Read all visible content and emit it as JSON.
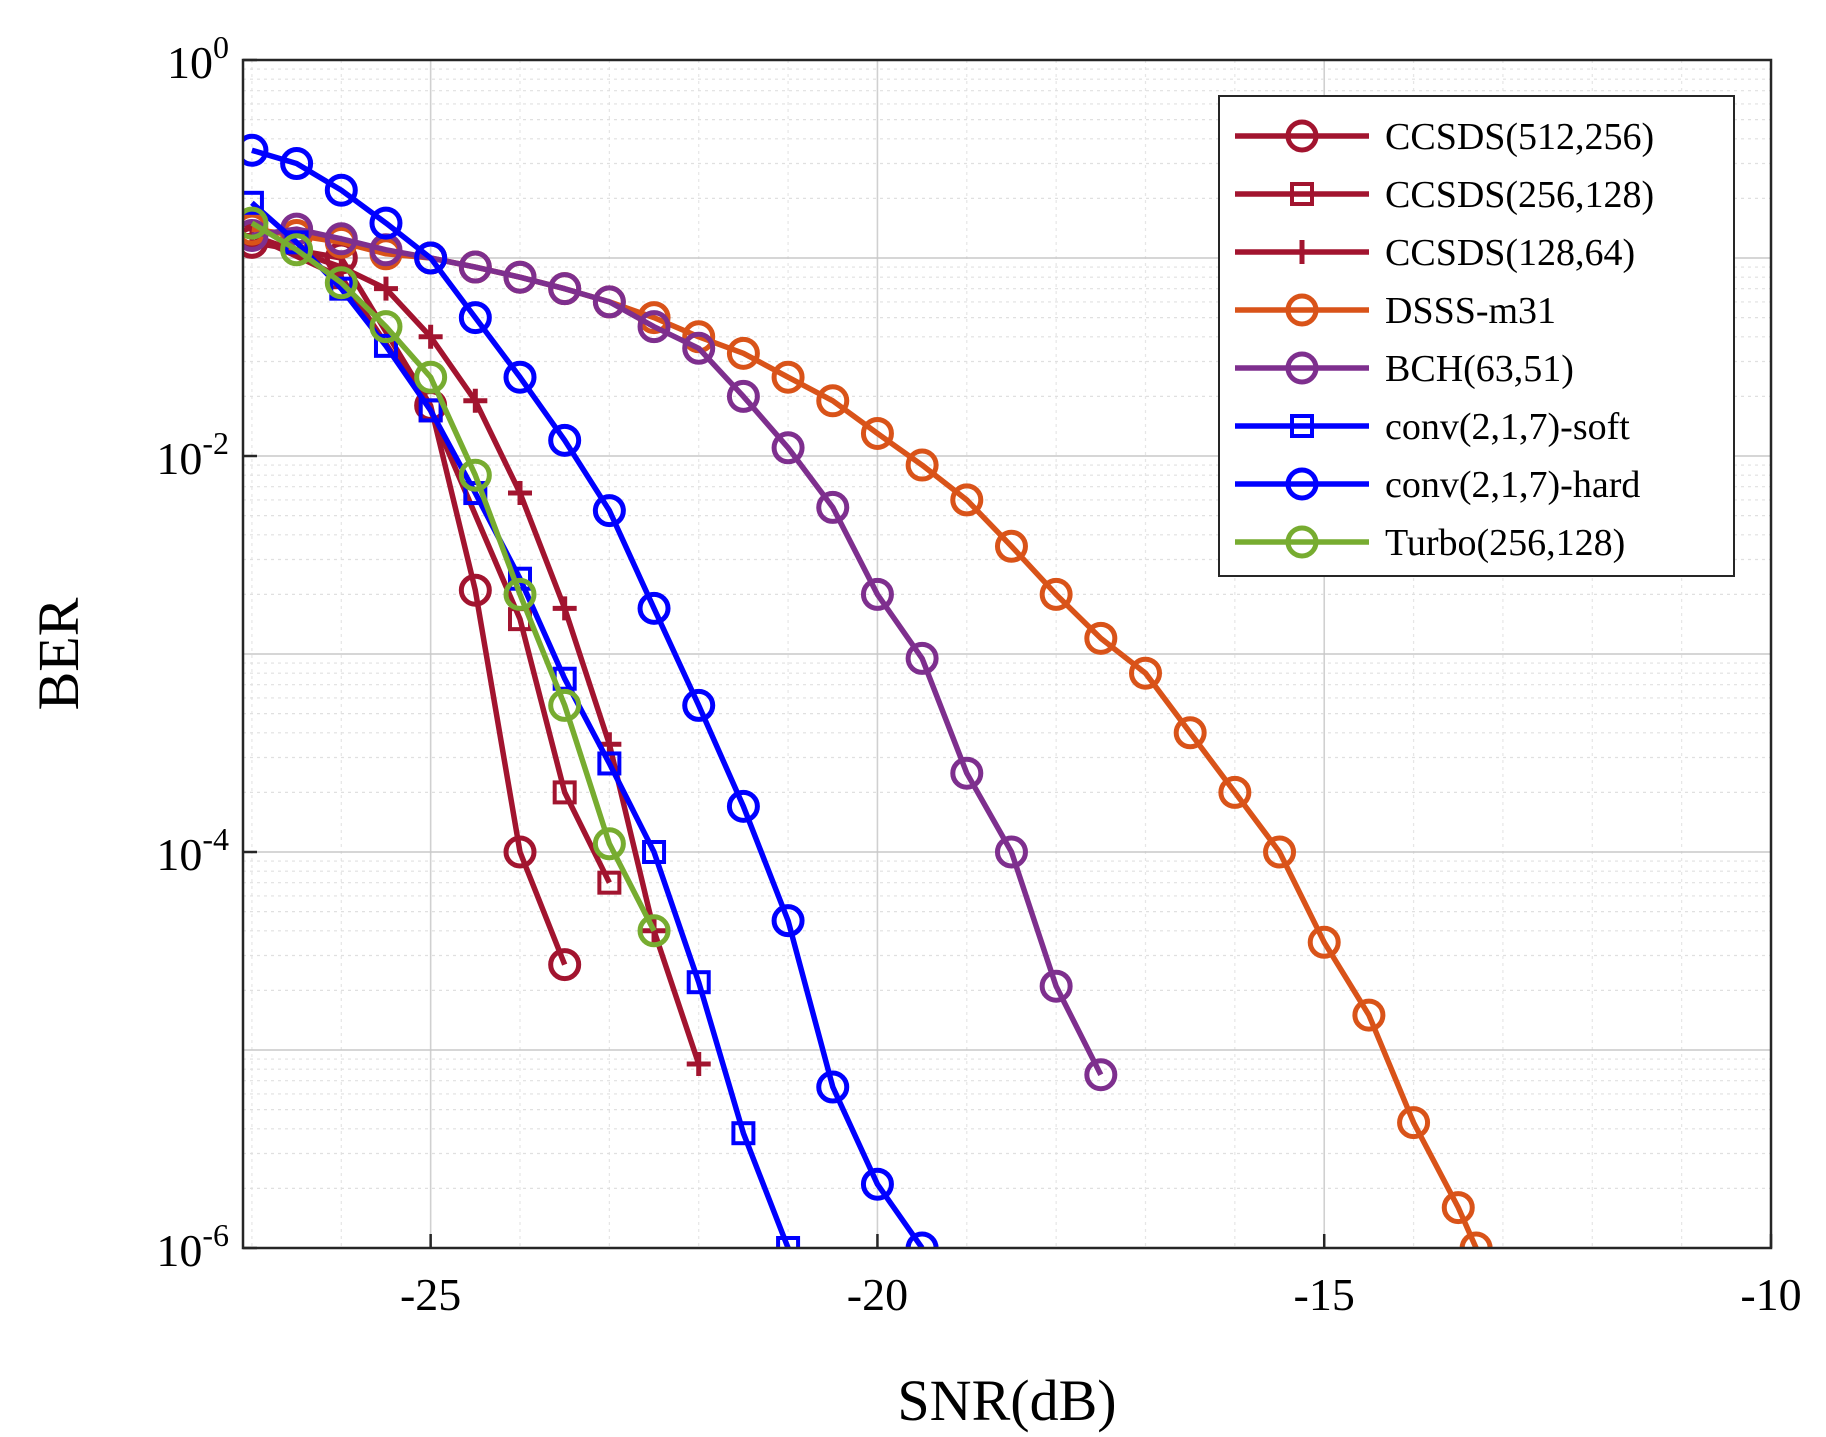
{
  "chart_data": {
    "type": "line",
    "title": "",
    "xlabel": "SNR(dB)",
    "ylabel": "BER",
    "xlim": [
      -27.1,
      -10
    ],
    "ylim": [
      1e-06,
      1
    ],
    "yscale": "log",
    "grid": true,
    "legend_position": "top-right",
    "x_ticks": [
      {
        "value": -25,
        "label": "-25"
      },
      {
        "value": -20,
        "label": "-20"
      },
      {
        "value": -15,
        "label": "-15"
      },
      {
        "value": -10,
        "label": "-10"
      }
    ],
    "y_ticks": [
      {
        "value": 1,
        "base": "10",
        "exp": "0"
      },
      {
        "value": 0.01,
        "base": "10",
        "exp": "-2"
      },
      {
        "value": 0.0001,
        "base": "10",
        "exp": "-4"
      },
      {
        "value": 1e-06,
        "base": "10",
        "exp": "-6"
      }
    ],
    "series": [
      {
        "name": "CCSDS(512,256)",
        "color": "#a2142f",
        "marker": "circle",
        "x": [
          -27,
          -26,
          -25,
          -24.5,
          -24,
          -23.5
        ],
        "y": [
          0.12,
          0.1,
          0.018,
          0.0021,
          0.0001,
          2.7e-05
        ]
      },
      {
        "name": "CCSDS(256,128)",
        "color": "#a2142f",
        "marker": "square",
        "x": [
          -27,
          -26,
          -25,
          -24,
          -23.5,
          -23
        ],
        "y": [
          0.13,
          0.08,
          0.017,
          0.0015,
          0.0002,
          7e-05
        ]
      },
      {
        "name": "CCSDS(128,64)",
        "color": "#a2142f",
        "marker": "plus",
        "x": [
          -27,
          -26,
          -25.5,
          -25,
          -24.5,
          -24,
          -23.5,
          -23,
          -22.5,
          -22
        ],
        "y": [
          0.13,
          0.09,
          0.07,
          0.04,
          0.019,
          0.0065,
          0.0017,
          0.00035,
          4e-05,
          8.5e-06
        ]
      },
      {
        "name": "DSSS-m31",
        "color": "#d95319",
        "marker": "circle",
        "x": [
          -27,
          -26.5,
          -26,
          -25.5,
          -25,
          -24.5,
          -24,
          -23.5,
          -23,
          -22.5,
          -22,
          -21.5,
          -21,
          -20.5,
          -20,
          -19.5,
          -19,
          -18.5,
          -18,
          -17.5,
          -17,
          -16.5,
          -16,
          -15.5,
          -15,
          -14.5,
          -14,
          -13.5,
          -13.3
        ],
        "y": [
          0.14,
          0.13,
          0.12,
          0.105,
          0.1,
          0.09,
          0.08,
          0.07,
          0.06,
          0.05,
          0.04,
          0.033,
          0.025,
          0.019,
          0.013,
          0.009,
          0.006,
          0.0035,
          0.002,
          0.0012,
          0.0008,
          0.0004,
          0.0002,
          0.0001,
          3.5e-05,
          1.5e-05,
          4.3e-06,
          1.6e-06,
          1e-06
        ]
      },
      {
        "name": "BCH(63,51)",
        "color": "#7e2f8e",
        "marker": "circle",
        "x": [
          -27,
          -26.5,
          -26,
          -25.5,
          -25,
          -24.5,
          -24,
          -23.5,
          -23,
          -22.5,
          -22,
          -21.5,
          -21,
          -20.5,
          -20,
          -19.5,
          -19,
          -18.5,
          -18,
          -17.5
        ],
        "y": [
          0.13,
          0.14,
          0.125,
          0.11,
          0.1,
          0.09,
          0.08,
          0.07,
          0.06,
          0.045,
          0.035,
          0.02,
          0.011,
          0.0055,
          0.002,
          0.00095,
          0.00025,
          0.0001,
          2.1e-05,
          7.5e-06
        ]
      },
      {
        "name": "conv(2,1,7)-soft",
        "color": "#0000ff",
        "marker": "square",
        "x": [
          -27,
          -26.5,
          -26,
          -25.5,
          -25,
          -24.5,
          -24,
          -23.5,
          -23,
          -22.5,
          -22,
          -21.5,
          -21
        ],
        "y": [
          0.19,
          0.12,
          0.07,
          0.036,
          0.017,
          0.0065,
          0.0024,
          0.00075,
          0.00028,
          0.0001,
          2.2e-05,
          3.8e-06,
          1e-06
        ]
      },
      {
        "name": "conv(2,1,7)-hard",
        "color": "#0000ff",
        "marker": "circle",
        "x": [
          -27,
          -26.5,
          -26,
          -25.5,
          -25,
          -24.5,
          -24,
          -23.5,
          -23,
          -22.5,
          -22,
          -21.5,
          -21,
          -20.5,
          -20,
          -19.5
        ],
        "y": [
          0.35,
          0.3,
          0.22,
          0.15,
          0.1,
          0.05,
          0.025,
          0.012,
          0.0053,
          0.0017,
          0.00055,
          0.00017,
          4.5e-05,
          6.5e-06,
          2.1e-06,
          1e-06
        ]
      },
      {
        "name": "Turbo(256,128)",
        "color": "#77ac30",
        "marker": "circle",
        "x": [
          -27,
          -26.5,
          -26,
          -25.5,
          -25,
          -24.5,
          -24,
          -23.5,
          -23,
          -22.5
        ],
        "y": [
          0.15,
          0.11,
          0.075,
          0.045,
          0.025,
          0.008,
          0.002,
          0.00055,
          0.00011,
          4e-05
        ]
      }
    ]
  }
}
